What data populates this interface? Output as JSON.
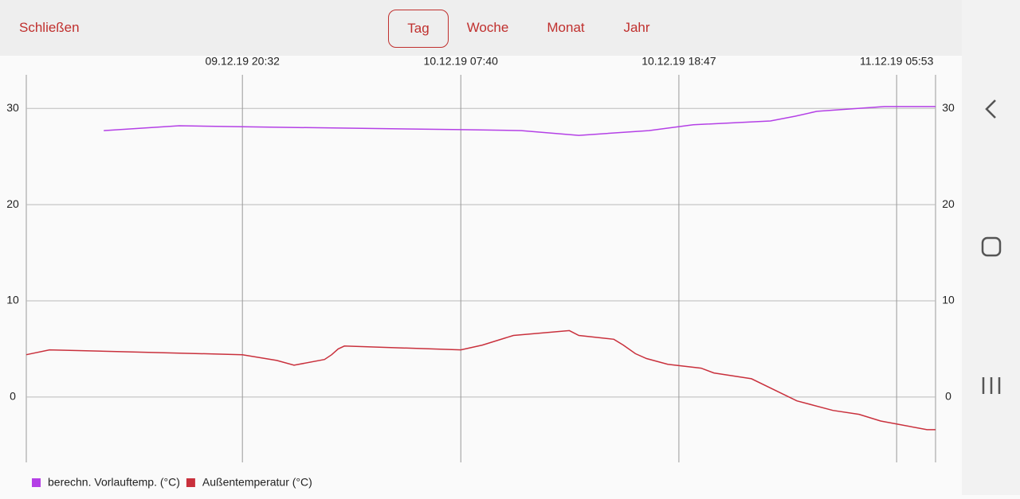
{
  "header": {
    "close": "Schließen",
    "tabs": [
      "Tag",
      "Woche",
      "Monat",
      "Jahr"
    ],
    "selected_tab": "Tag"
  },
  "chart_data": {
    "type": "line",
    "xlim": [
      "09.12.19 09:31",
      "11.12.19 07:52"
    ],
    "xticks": [
      "09.12.19 20:32",
      "10.12.19 07:40",
      "10.12.19 18:47",
      "11.12.19 05:53"
    ],
    "ylim": [
      -6.8,
      33.5
    ],
    "yticks": [
      0,
      10,
      20,
      30
    ],
    "grid": true,
    "series": [
      {
        "name": "berechn. Vorlauftemp. (°C)",
        "color": "#b440e6",
        "x": [
          "09.12.19 13:28",
          "09.12.19 17:19",
          "09.12.19 20:32",
          "10.12.19 07:40",
          "10.12.19 10:45",
          "10.12.19 13:41",
          "10.12.19 17:15",
          "10.12.19 19:31",
          "10.12.19 23:27",
          "11.12.19 00:43",
          "11.12.19 01:49",
          "11.12.19 05:16",
          "11.12.19 07:52"
        ],
        "values": [
          27.7,
          28.2,
          28.1,
          27.8,
          27.7,
          27.2,
          27.7,
          28.3,
          28.7,
          29.2,
          29.7,
          30.2,
          30.2
        ]
      },
      {
        "name": "Außentemperatur (°C)",
        "color": "#c9303c",
        "x": [
          "09.12.19 09:31",
          "09.12.19 10:42",
          "09.12.19 20:32",
          "09.12.19 22:17",
          "09.12.19 23:10",
          "10.12.19 00:43",
          "10.12.19 01:05",
          "10.12.19 01:25",
          "10.12.19 01:44",
          "10.12.19 07:40",
          "10.12.19 08:46",
          "10.12.19 10:21",
          "10.12.19 13:12",
          "10.12.19 13:41",
          "10.12.19 15:28",
          "10.12.19 15:57",
          "10.12.19 16:34",
          "10.12.19 17:08",
          "10.12.19 18:13",
          "10.12.19 19:55",
          "10.12.19 20:34",
          "10.12.19 22:29",
          "11.12.19 00:48",
          "11.12.19 02:38",
          "11.12.19 03:58",
          "11.12.19 05:04",
          "11.12.19 07:26",
          "11.12.19 07:52"
        ],
        "values": [
          4.4,
          4.9,
          4.4,
          3.8,
          3.3,
          3.9,
          4.4,
          5.0,
          5.3,
          4.9,
          5.4,
          6.4,
          6.9,
          6.4,
          6.0,
          5.4,
          4.5,
          4.0,
          3.4,
          3.0,
          2.5,
          1.9,
          -0.4,
          -1.4,
          -1.8,
          -2.5,
          -3.4,
          -3.4
        ]
      }
    ]
  }
}
